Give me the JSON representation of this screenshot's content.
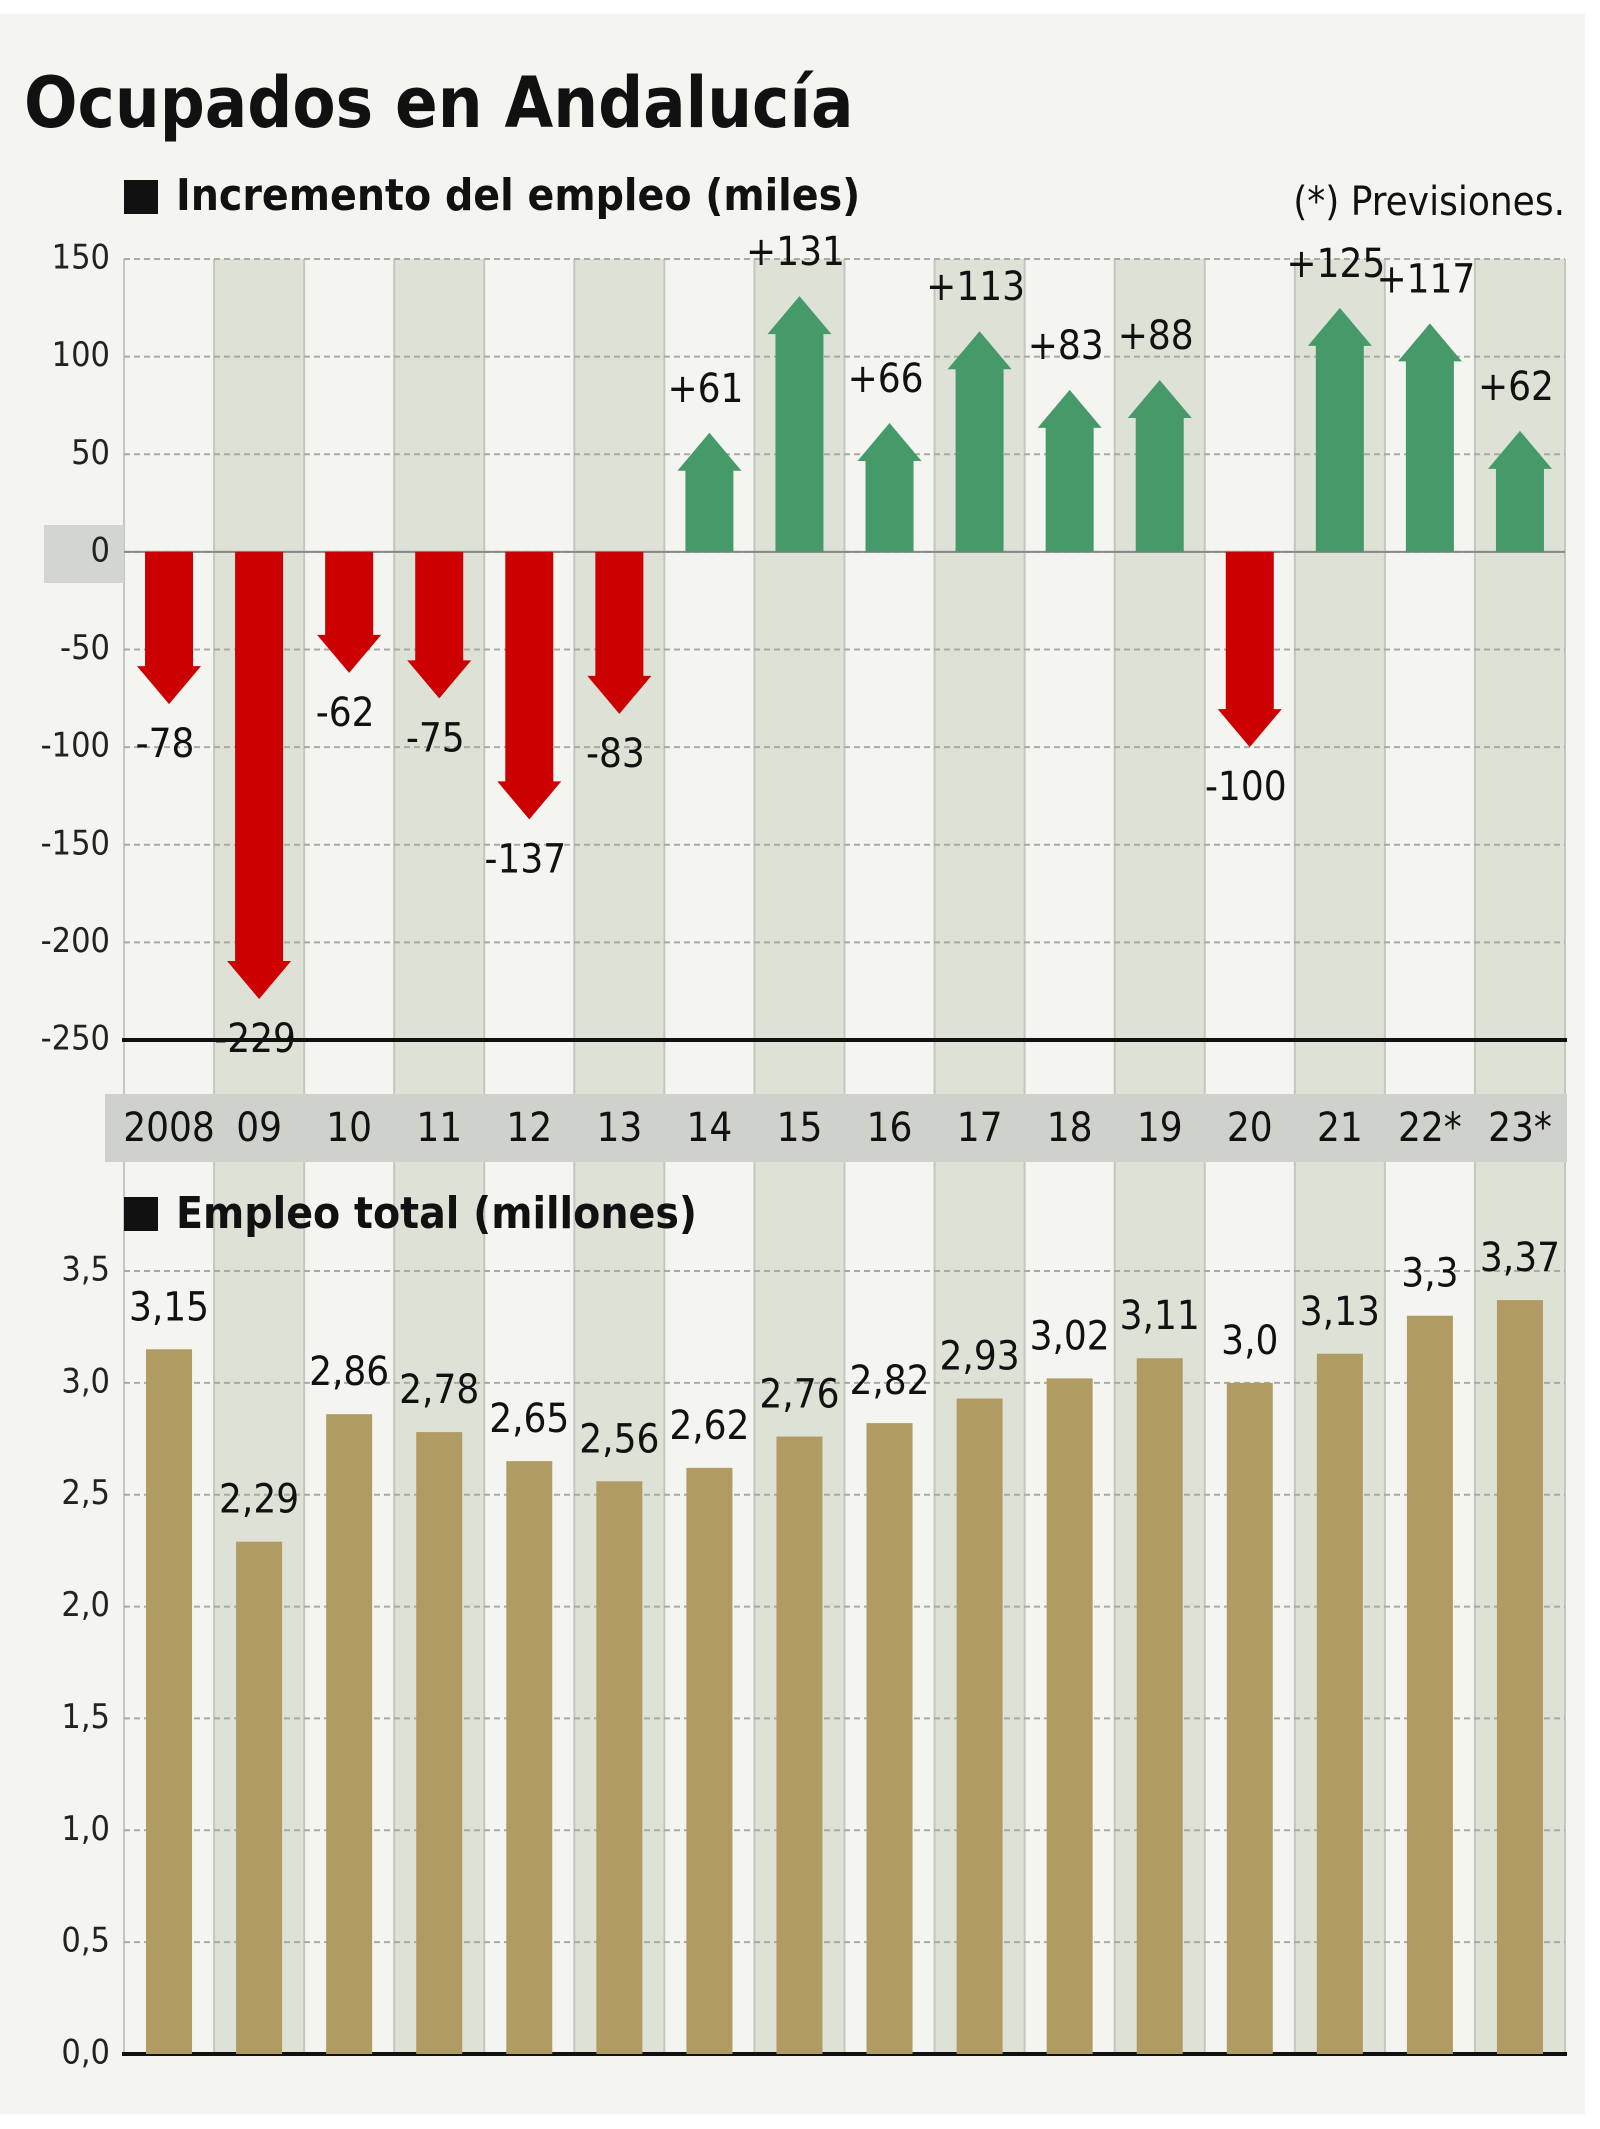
{
  "title": "Ocupados en Andalucía",
  "note": "(*) Previsiones.",
  "chart_data": [
    {
      "type": "arrow",
      "subtitle": "Incremento del empleo (miles)",
      "categories": [
        "2008",
        "09",
        "10",
        "11",
        "12",
        "13",
        "14",
        "15",
        "16",
        "17",
        "18",
        "19",
        "20",
        "21",
        "22*",
        "23*"
      ],
      "values": [
        -78,
        -229,
        -62,
        -75,
        -137,
        -83,
        61,
        131,
        66,
        113,
        83,
        88,
        -100,
        125,
        117,
        62
      ],
      "value_labels": [
        "-78",
        "-229",
        "-62",
        "-75",
        "-137",
        "-83",
        "+61",
        "+131",
        "+66",
        "+113",
        "+83",
        "+88",
        "-100",
        "+125",
        "+117",
        "+62"
      ],
      "colors": {
        "positive": "#469a6a",
        "negative": "#cc0000"
      },
      "ylim": [
        -250,
        150
      ],
      "yticks": [
        -250,
        -200,
        -150,
        -100,
        -50,
        0,
        50,
        100,
        150
      ],
      "grid": true
    },
    {
      "type": "bar",
      "subtitle": "Empleo total (millones)",
      "values": [
        3.15,
        2.29,
        2.86,
        2.78,
        2.65,
        2.56,
        2.62,
        2.76,
        2.82,
        2.93,
        3.02,
        3.11,
        3.0,
        3.13,
        3.3,
        3.37
      ],
      "value_labels": [
        "3,15",
        "2,29",
        "2,86",
        "2,78",
        "2,65",
        "2,56",
        "2,62",
        "2,76",
        "2,82",
        "2,93",
        "3,02",
        "3,11",
        "3,0",
        "3,13",
        "3,3",
        "3,37"
      ],
      "color": "#b09c63",
      "ylim": [
        0,
        3.5
      ],
      "yticks": [
        {
          "value": 0,
          "label": "0,0"
        },
        {
          "value": 0.5,
          "label": "0,5"
        },
        {
          "value": 1,
          "label": "1,0"
        },
        {
          "value": 1.5,
          "label": "1,5"
        },
        {
          "value": 2,
          "label": "2,0"
        },
        {
          "value": 2.5,
          "label": "2,5"
        },
        {
          "value": 3,
          "label": "3,0"
        },
        {
          "value": 3.5,
          "label": "3,5"
        }
      ],
      "grid": true
    }
  ]
}
